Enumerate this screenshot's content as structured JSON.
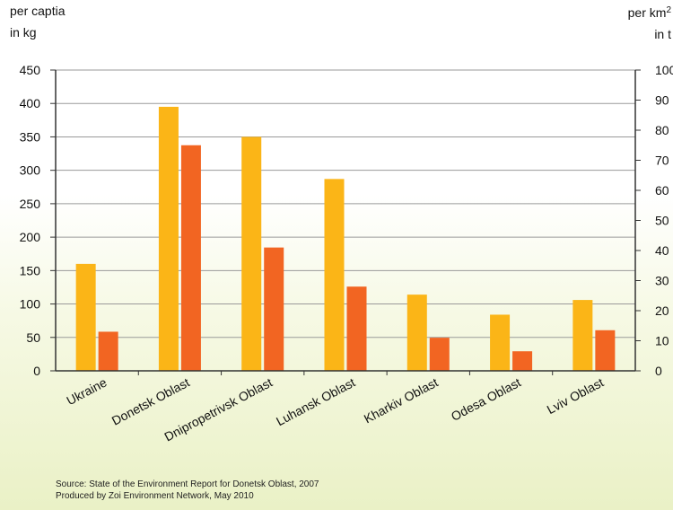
{
  "labels": {
    "left_unit_line1": "per captia",
    "left_unit_line2": "in kg",
    "right_unit_base": "per km",
    "right_unit_sup": "2",
    "right_unit_line2": "in t"
  },
  "source": "Source: State of the Environment Report for Donetsk Oblast, 2007",
  "produced_by": "Produced by Zoi Environment Network, May 2010",
  "colors": {
    "series1": "#fbb517",
    "series2": "#f26522",
    "grid": "#9a9a9a",
    "axis": "#333333"
  },
  "chart_data": {
    "type": "bar",
    "categories": [
      "Ukraine",
      "Donetsk Oblast",
      "Dnipropetrivsk Oblast",
      "Luhansk Oblast",
      "Kharkiv Oblast",
      "Odesa Oblast",
      "Lviv Oblast"
    ],
    "series": [
      {
        "values": [
          160,
          395,
          350,
          287,
          114,
          84,
          106
        ],
        "axis": "left"
      },
      {
        "values": [
          13,
          75,
          41,
          28,
          11,
          6.5,
          13.5
        ],
        "axis": "right"
      }
    ],
    "ylim_left": [
      0,
      450
    ],
    "yticks_left": [
      "0",
      "50",
      "100",
      "150",
      "200",
      "250",
      "300",
      "350",
      "400",
      "450"
    ],
    "ylim_right": [
      0,
      100
    ],
    "yticks_right": [
      "0",
      "10",
      "20",
      "30",
      "40",
      "50",
      "60",
      "70",
      "80",
      "90",
      "100"
    ],
    "grid": true
  }
}
